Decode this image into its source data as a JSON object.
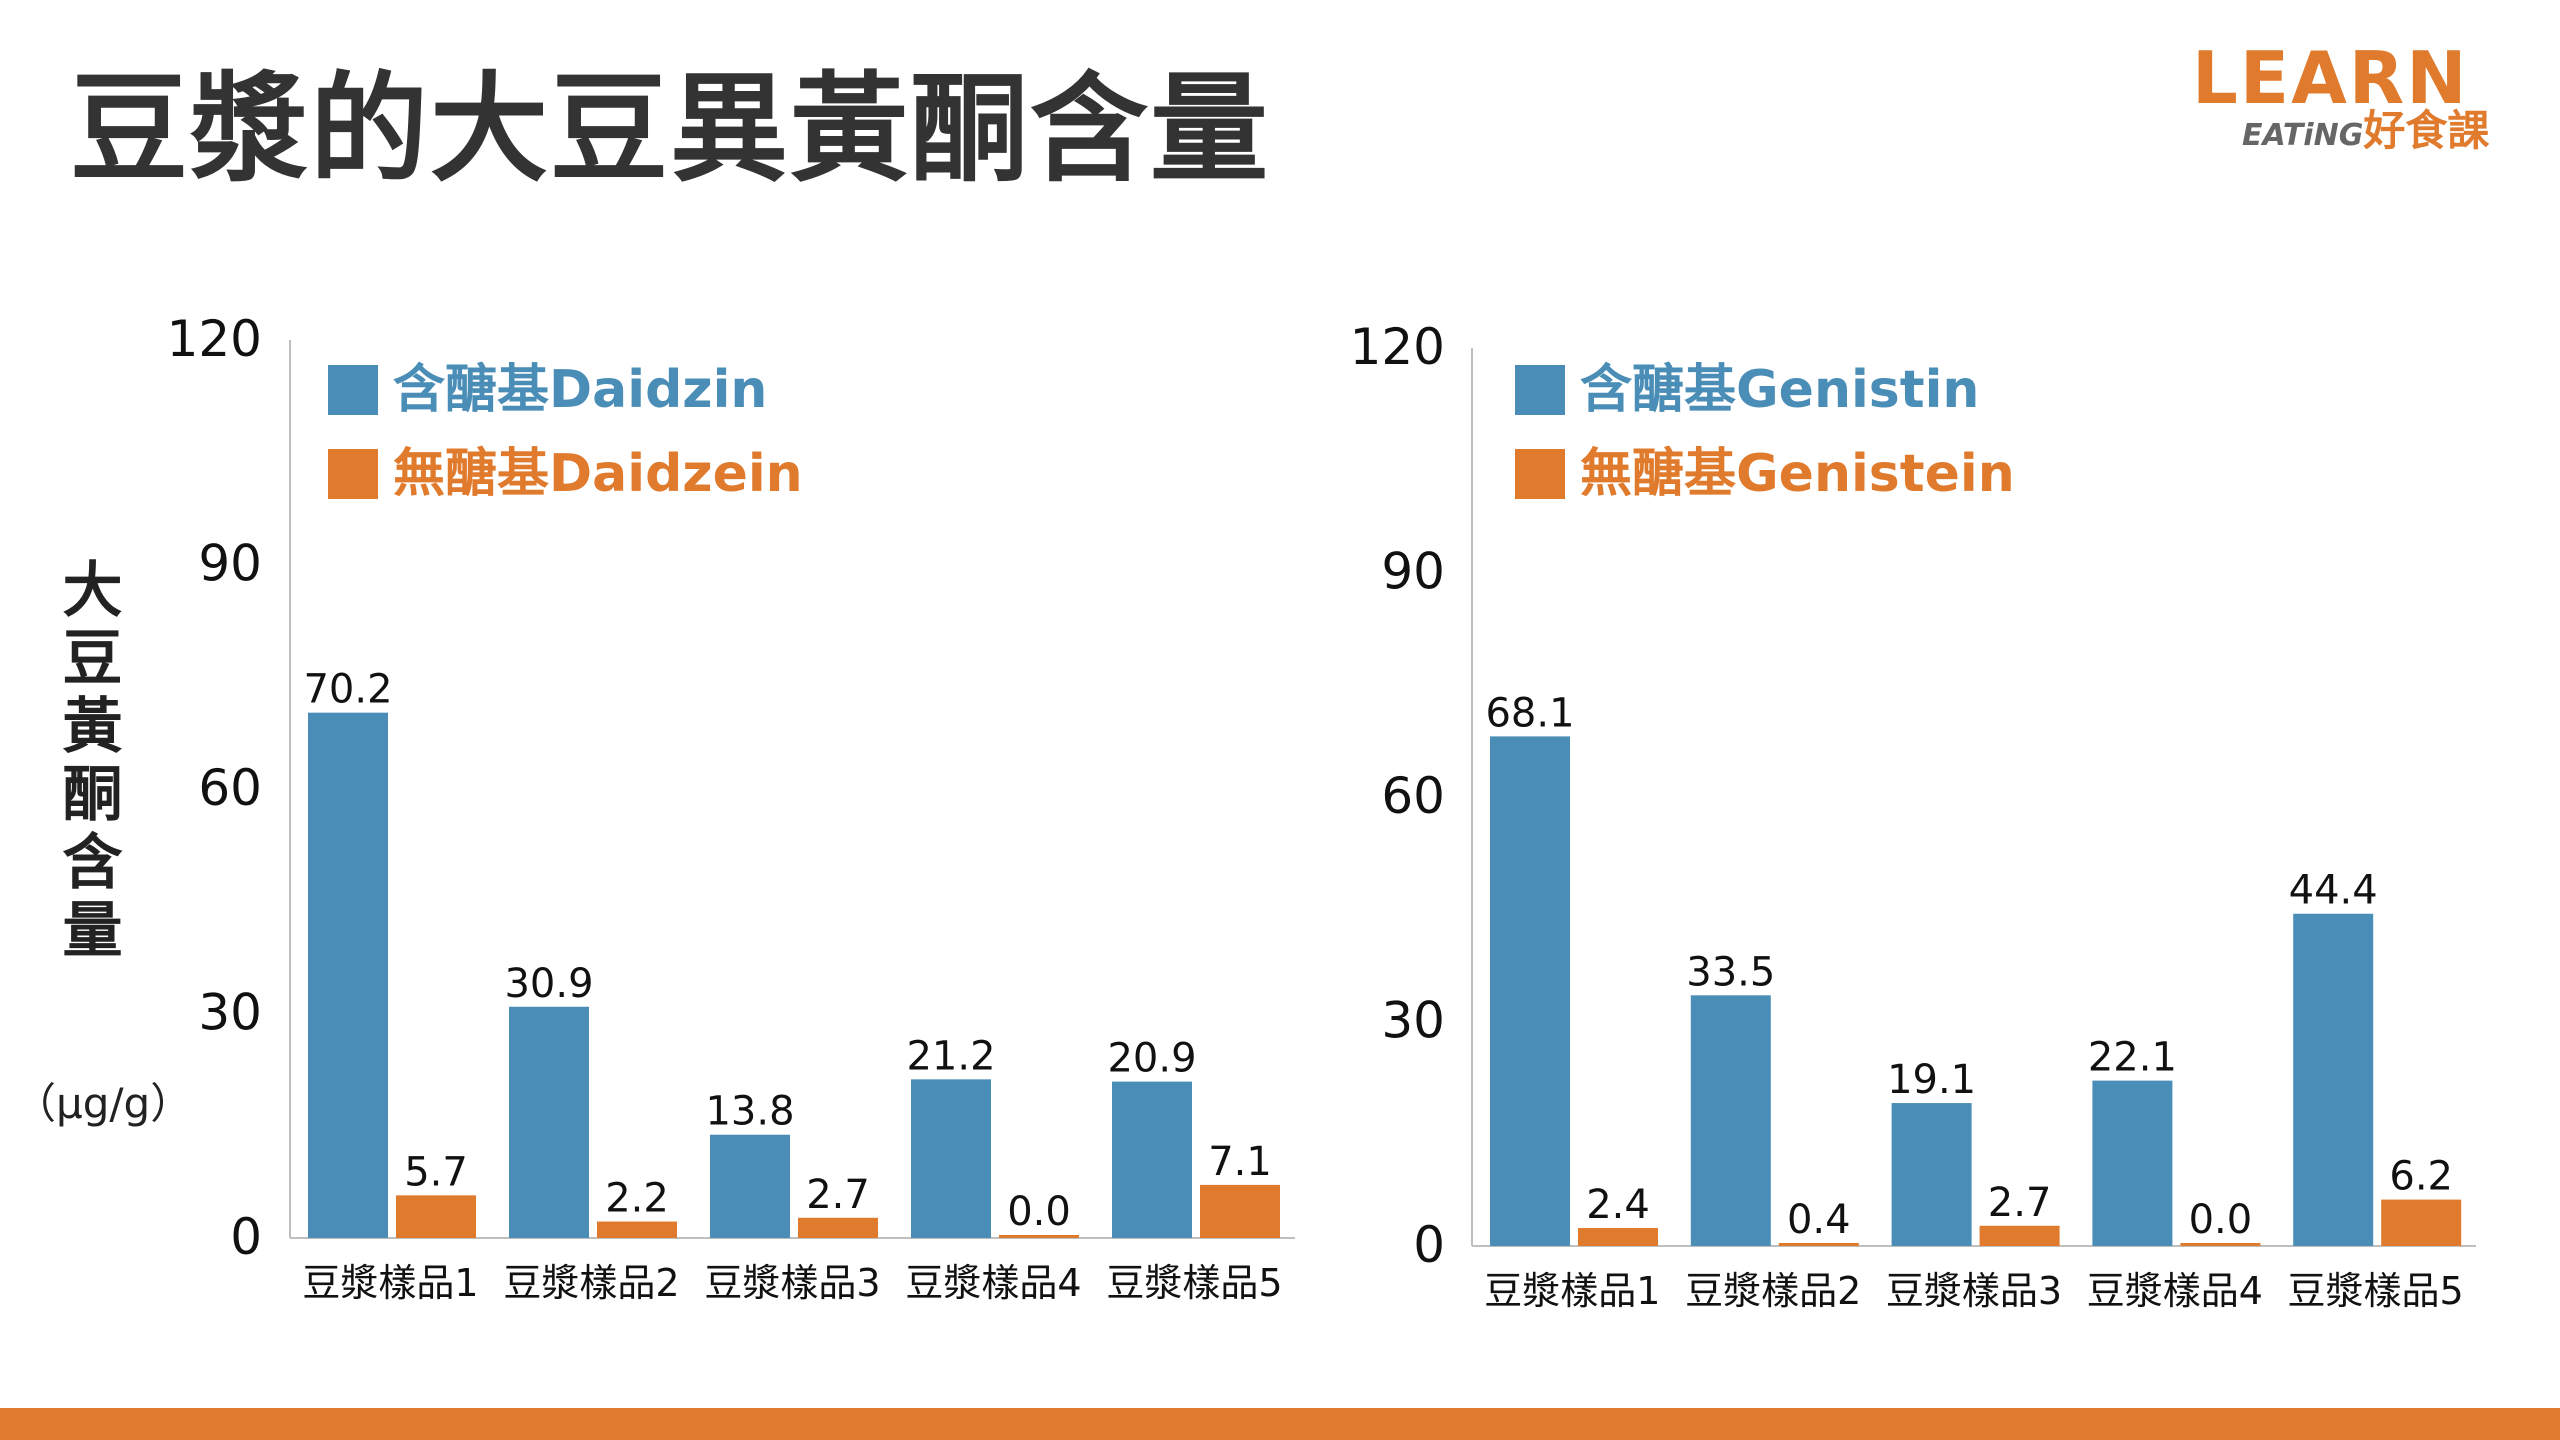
{
  "title": "豆漿的大豆異黃酮含量",
  "logo": {
    "line1": "LEARN",
    "line2_en": "EATiNG",
    "line2_cn": "好食課"
  },
  "y_label": "大豆黃酮含量",
  "y_unit": "（μg/g）",
  "colors": {
    "blue": "#4a8db7",
    "orange": "#e07b2e",
    "accent": "#e07b2e"
  },
  "chart_data": [
    {
      "type": "bar",
      "categories": [
        "豆漿樣品1",
        "豆漿樣品2",
        "豆漿樣品3",
        "豆漿樣品4",
        "豆漿樣品5"
      ],
      "series": [
        {
          "name": "含醣基Daidzin",
          "values": [
            70.2,
            30.9,
            13.8,
            21.2,
            20.9
          ],
          "color": "#4a8db7"
        },
        {
          "name": "無醣基Daidzein",
          "values": [
            5.7,
            2.2,
            2.7,
            0.0,
            7.1
          ],
          "color": "#e07b2e"
        }
      ],
      "data_labels": [
        [
          "70.2",
          "30.9",
          "13.8",
          "21.2",
          "20.9"
        ],
        [
          "5.7",
          "2.2",
          "2.7",
          "0.0",
          "7.1"
        ]
      ],
      "ylabel": "大豆黃酮含量（μg/g）",
      "ylim": [
        0,
        120
      ],
      "yticks": [
        0,
        30,
        60,
        90,
        120
      ],
      "grid": false,
      "legend": "top-left"
    },
    {
      "type": "bar",
      "categories": [
        "豆漿樣品1",
        "豆漿樣品2",
        "豆漿樣品3",
        "豆漿樣品4",
        "豆漿樣品5"
      ],
      "series": [
        {
          "name": "含醣基Genistin",
          "values": [
            68.1,
            33.5,
            19.1,
            22.1,
            44.4
          ],
          "color": "#4a8db7"
        },
        {
          "name": "無醣基Genistein",
          "values": [
            2.4,
            0.4,
            2.7,
            0.0,
            6.2
          ],
          "color": "#e07b2e"
        }
      ],
      "data_labels": [
        [
          "68.1",
          "33.5",
          "19.1",
          "22.1",
          "44.4"
        ],
        [
          "2.4",
          "0.4",
          "2.7",
          "0.0",
          "6.2"
        ]
      ],
      "ylabel": "",
      "ylim": [
        0,
        120
      ],
      "yticks": [
        0,
        30,
        60,
        90,
        120
      ],
      "grid": false,
      "legend": "top-left"
    }
  ]
}
